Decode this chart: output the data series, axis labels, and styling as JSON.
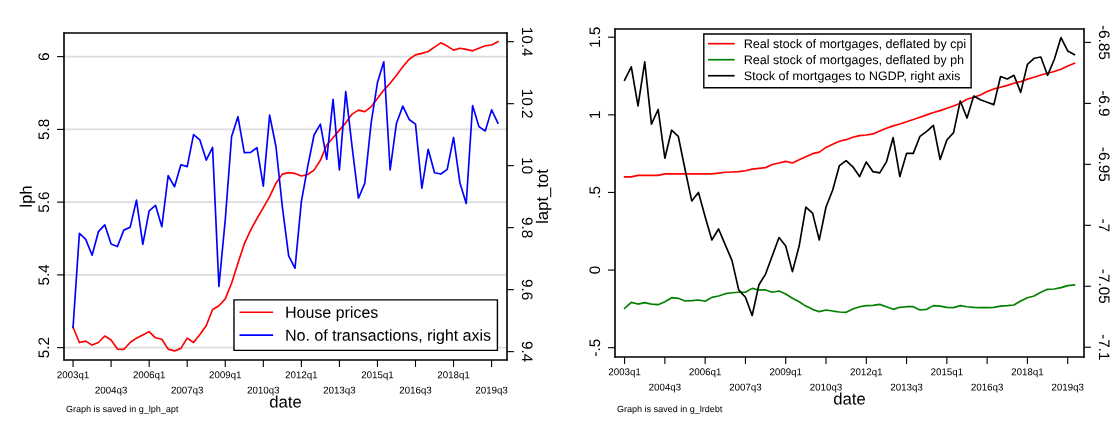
{
  "chart_data": [
    {
      "type": "line",
      "xlabel": "date",
      "ylabel": "lph",
      "y2label": "lapt_tot",
      "categories": [
        "2003q1",
        null,
        null,
        null,
        null,
        null,
        "2004q3",
        null,
        null,
        null,
        null,
        null,
        "2006q1",
        null,
        null,
        null,
        null,
        null,
        "2007q3",
        null,
        null,
        null,
        null,
        null,
        "2009q1",
        null,
        null,
        null,
        null,
        null,
        "2010q3",
        null,
        null,
        null,
        null,
        null,
        "2012q1",
        null,
        null,
        null,
        null,
        null,
        "2013q3",
        null,
        null,
        null,
        null,
        null,
        "2015q1",
        null,
        null,
        null,
        null,
        null,
        "2016q3",
        null,
        null,
        null,
        null,
        null,
        "2018q1",
        null,
        null,
        null,
        null,
        null,
        "2019q3",
        null
      ],
      "series": [
        {
          "name": "House prices",
          "color": "#ff0000",
          "values": [
            5.256,
            5.214,
            5.218,
            5.207,
            5.214,
            5.232,
            5.221,
            5.196,
            5.195,
            5.214,
            5.226,
            5.235,
            5.244,
            5.227,
            5.223,
            5.196,
            5.191,
            5.198,
            5.226,
            5.214,
            5.236,
            5.26,
            5.305,
            5.315,
            5.334,
            5.377,
            5.432,
            5.485,
            5.523,
            5.555,
            5.585,
            5.615,
            5.652,
            5.677,
            5.681,
            5.679,
            5.672,
            5.676,
            5.688,
            5.715,
            5.757,
            5.777,
            5.798,
            5.818,
            5.842,
            5.853,
            5.849,
            5.862,
            5.885,
            5.908,
            5.927,
            5.949,
            5.972,
            5.993,
            6.005,
            6.009,
            6.014,
            6.026,
            6.038,
            6.029,
            6.018,
            6.023,
            6.02,
            6.016,
            6.023,
            6.03,
            6.032,
            6.041
          ]
        },
        {
          "name": "No. of transactions, right axis",
          "color": "#0000ff",
          "axis": "y2",
          "values": [
            9.478,
            9.782,
            9.762,
            9.711,
            9.787,
            9.809,
            9.747,
            9.739,
            9.792,
            9.801,
            9.889,
            9.746,
            9.854,
            9.872,
            9.803,
            9.968,
            9.932,
            10.003,
            9.997,
            10.1,
            10.083,
            10.018,
            10.059,
            9.61,
            9.825,
            10.094,
            10.158,
            10.042,
            10.043,
            10.058,
            9.934,
            10.163,
            10.061,
            9.868,
            9.709,
            9.669,
            9.884,
            9.997,
            10.099,
            10.134,
            10.02,
            10.214,
            9.986,
            10.239,
            10.061,
            9.895,
            9.943,
            10.137,
            10.268,
            10.335,
            9.986,
            10.137,
            10.192,
            10.149,
            10.134,
            9.927,
            10.053,
            9.977,
            9.973,
            9.988,
            10.091,
            9.945,
            9.878,
            10.194,
            10.126,
            10.112,
            10.18,
            10.137
          ]
        }
      ],
      "ylim": [
        5.166,
        6.065
      ],
      "yticks": [
        5.2,
        5.4,
        5.6,
        5.8,
        6
      ],
      "y2lim": [
        9.373,
        10.428
      ],
      "y2ticks": [
        9.4,
        9.6,
        9.8,
        10,
        10.2,
        10.4
      ],
      "grid": "y",
      "legend": "bottom right",
      "annotations": [
        "Graph is saved in g_lph_apt"
      ]
    },
    {
      "type": "line",
      "xlabel": "date",
      "categories": [
        "2003q1",
        null,
        null,
        null,
        null,
        null,
        "2004q3",
        null,
        null,
        null,
        null,
        null,
        "2006q1",
        null,
        null,
        null,
        null,
        null,
        "2007q3",
        null,
        null,
        null,
        null,
        null,
        "2009q1",
        null,
        null,
        null,
        null,
        null,
        "2010q3",
        null,
        null,
        null,
        null,
        null,
        "2012q1",
        null,
        null,
        null,
        null,
        null,
        "2013q3",
        null,
        null,
        null,
        null,
        null,
        "2015q1",
        null,
        null,
        null,
        null,
        null,
        "2016q3",
        null,
        null,
        null,
        null,
        null,
        "2018q1",
        null,
        null,
        null,
        null,
        null,
        "2019q3",
        null
      ],
      "series": [
        {
          "name": "Real stock of mortgages, deflated by cpi",
          "color": "#ff0000",
          "values": [
            0.6,
            0.6,
            0.61,
            0.61,
            0.61,
            0.61,
            0.62,
            0.62,
            0.62,
            0.62,
            0.62,
            0.62,
            0.62,
            0.62,
            0.625,
            0.63,
            0.632,
            0.634,
            0.64,
            0.65,
            0.655,
            0.66,
            0.68,
            0.69,
            0.7,
            0.69,
            0.71,
            0.73,
            0.75,
            0.76,
            0.79,
            0.81,
            0.83,
            0.84,
            0.856,
            0.866,
            0.87,
            0.877,
            0.896,
            0.914,
            0.929,
            0.941,
            0.956,
            0.97,
            0.985,
            1.0,
            1.015,
            1.027,
            1.042,
            1.057,
            1.075,
            1.1,
            1.113,
            1.128,
            1.15,
            1.167,
            1.178,
            1.19,
            1.204,
            1.214,
            1.23,
            1.242,
            1.257,
            1.268,
            1.279,
            1.294,
            1.315,
            1.332
          ]
        },
        {
          "name": "Real stock of mortgages, deflated by ph",
          "color": "#008000",
          "values": [
            -0.247,
            -0.208,
            -0.219,
            -0.21,
            -0.219,
            -0.223,
            -0.204,
            -0.178,
            -0.182,
            -0.199,
            -0.197,
            -0.193,
            -0.201,
            -0.176,
            -0.167,
            -0.152,
            -0.146,
            -0.143,
            -0.143,
            -0.118,
            -0.128,
            -0.128,
            -0.143,
            -0.135,
            -0.154,
            -0.182,
            -0.204,
            -0.232,
            -0.253,
            -0.268,
            -0.257,
            -0.264,
            -0.27,
            -0.272,
            -0.251,
            -0.236,
            -0.229,
            -0.227,
            -0.221,
            -0.236,
            -0.253,
            -0.24,
            -0.236,
            -0.236,
            -0.257,
            -0.253,
            -0.229,
            -0.232,
            -0.24,
            -0.242,
            -0.229,
            -0.236,
            -0.24,
            -0.242,
            -0.242,
            -0.24,
            -0.232,
            -0.229,
            -0.225,
            -0.199,
            -0.178,
            -0.167,
            -0.143,
            -0.124,
            -0.122,
            -0.113,
            -0.1,
            -0.096
          ]
        },
        {
          "name": "Stock of mortgages to NGDP, right axis",
          "color": "#000000",
          "axis": "y2",
          "values": [
            -6.881,
            -6.87,
            -6.902,
            -6.866,
            -6.917,
            -6.905,
            -6.945,
            -6.922,
            -6.927,
            -6.954,
            -6.98,
            -6.973,
            -6.993,
            -7.012,
            -7.003,
            -7.016,
            -7.029,
            -7.053,
            -7.059,
            -7.074,
            -7.049,
            -7.04,
            -7.025,
            -7.01,
            -7.017,
            -7.038,
            -7.017,
            -6.985,
            -6.99,
            -7.012,
            -6.985,
            -6.971,
            -6.951,
            -6.947,
            -6.952,
            -6.96,
            -6.948,
            -6.956,
            -6.957,
            -6.948,
            -6.928,
            -6.96,
            -6.941,
            -6.941,
            -6.927,
            -6.923,
            -6.918,
            -6.946,
            -6.93,
            -6.924,
            -6.898,
            -6.912,
            -6.894,
            -6.897,
            -6.899,
            -6.901,
            -6.878,
            -6.88,
            -6.877,
            -6.891,
            -6.868,
            -6.863,
            -6.862,
            -6.877,
            -6.864,
            -6.846,
            -6.857,
            -6.86
          ]
        }
      ],
      "ylim": [
        -0.56,
        1.553
      ],
      "yticks": [
        {
          "value": -0.5,
          "label": "-.5"
        },
        0,
        {
          "value": 0.5,
          "label": ".5"
        },
        1,
        1.5
      ],
      "y2lim": [
        -7.108,
        -6.839
      ],
      "y2ticks": [
        -7.1,
        -7.05,
        -7,
        -6.95,
        -6.9,
        -6.85
      ],
      "legend": "top right",
      "annotations": [
        "Graph is saved in g_lrdebt"
      ]
    }
  ]
}
